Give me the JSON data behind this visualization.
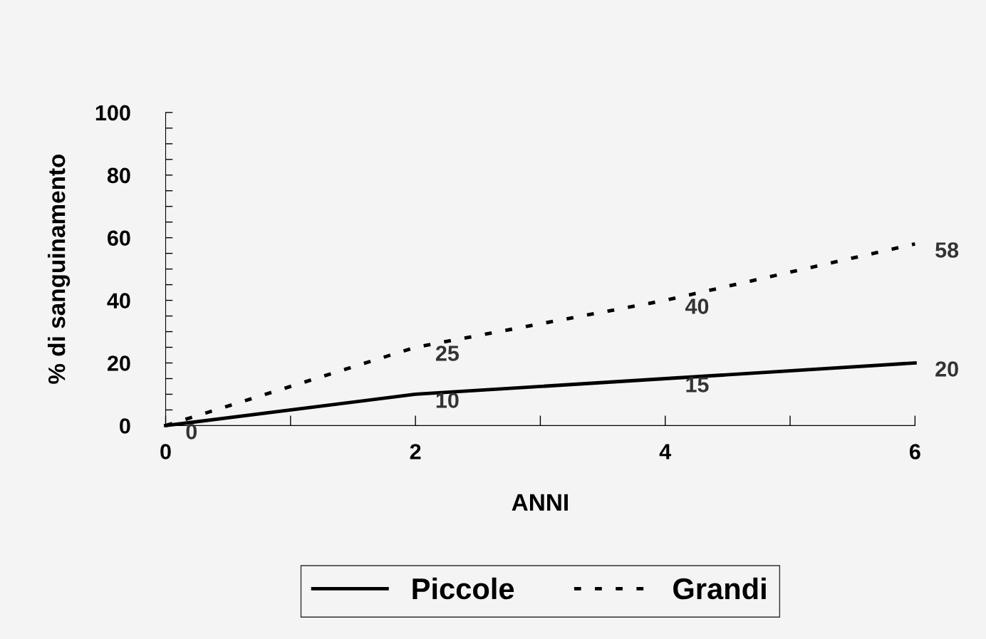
{
  "chart_data": {
    "type": "line",
    "xlabel": "ANNI",
    "ylabel": "% di sanguinamento",
    "x": [
      0,
      2,
      4,
      6
    ],
    "series": [
      {
        "name": "Piccole",
        "color": "#000000",
        "line_style": "solid",
        "values": [
          0,
          10,
          15,
          20
        ],
        "value_labels": [
          "0",
          "10",
          "15",
          "20"
        ]
      },
      {
        "name": "Grandi",
        "color": "#000000",
        "line_style": "dotted",
        "values": [
          0,
          25,
          40,
          58
        ],
        "value_labels": [
          null,
          "25",
          "40",
          "58"
        ]
      }
    ],
    "xlim": [
      0,
      6
    ],
    "xticks": [
      0,
      {
        "value": 1,
        "label": null
      },
      2,
      {
        "value": 3,
        "label": null
      },
      4,
      {
        "value": 5,
        "label": null
      },
      6
    ],
    "ylim": [
      0,
      100
    ],
    "yticks": [
      0,
      {
        "value": 5,
        "label": null
      },
      {
        "value": 10,
        "label": null
      },
      {
        "value": 15,
        "label": null
      },
      20,
      {
        "value": 25,
        "label": null
      },
      {
        "value": 30,
        "label": null
      },
      {
        "value": 35,
        "label": null
      },
      40,
      {
        "value": 45,
        "label": null
      },
      {
        "value": 50,
        "label": null
      },
      {
        "value": 55,
        "label": null
      },
      60,
      {
        "value": 65,
        "label": null
      },
      {
        "value": 70,
        "label": null
      },
      {
        "value": 75,
        "label": null
      },
      80,
      {
        "value": 85,
        "label": null
      },
      {
        "value": 90,
        "label": null
      },
      {
        "value": 95,
        "label": null
      },
      100
    ],
    "grid": false,
    "legend": "bottom",
    "marker": "none"
  }
}
